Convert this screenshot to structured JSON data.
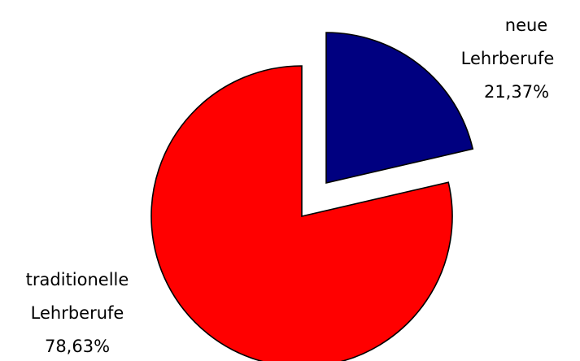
{
  "chart_data": {
    "type": "pie",
    "title": "",
    "exploded": true,
    "slices": [
      {
        "label_line1": "neue",
        "label_line2": "Lehrberufe",
        "label_value": "21,37%",
        "value": 21.37,
        "color": "#000080"
      },
      {
        "label_line1": "traditionelle",
        "label_line2": "Lehrberufe",
        "label_value": "78,63%",
        "value": 78.63,
        "color": "#ff0000"
      }
    ],
    "legend": "none",
    "outline_color": "#000000"
  }
}
